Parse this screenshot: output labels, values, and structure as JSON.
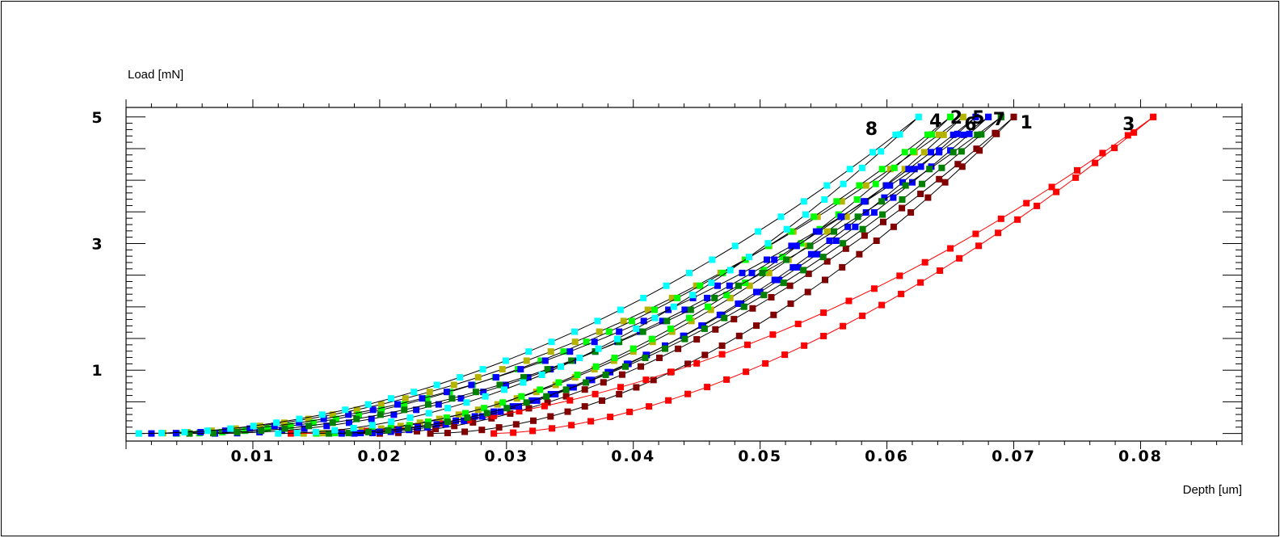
{
  "chart_data": {
    "type": "scatter",
    "title": "",
    "xlabel": "Depth  [um]",
    "ylabel": "Load  [mN]",
    "xlim": [
      0,
      0.088
    ],
    "ylim": [
      -0.12,
      5.15
    ],
    "xticks": [
      0.01,
      0.02,
      0.03,
      0.04,
      0.05,
      0.06,
      0.07,
      0.08
    ],
    "xtick_labels": [
      "0.01",
      "0.02",
      "0.03",
      "0.04",
      "0.05",
      "0.06",
      "0.07",
      "0.08"
    ],
    "yticks": [
      1,
      3,
      5
    ],
    "ytick_labels": [
      "1",
      "3",
      "5"
    ],
    "grid": false,
    "legend": "curve numbers at top of each curve",
    "series": [
      {
        "label": "1",
        "color": "#800000",
        "line_color": "#000000",
        "loading": {
          "x_start": 0.02,
          "x_end": 0.07,
          "exponent": 1.75
        },
        "unloading": {
          "x_start": 0.024,
          "x_end": 0.07,
          "exponent": 1.85
        }
      },
      {
        "label": "2",
        "color": "#b4b400",
        "line_color": "#000000",
        "loading": {
          "x_start": 0.001,
          "x_end": 0.066,
          "exponent": 1.95
        },
        "unloading": {
          "x_start": 0.014,
          "x_end": 0.066,
          "exponent": 1.95
        }
      },
      {
        "label": "3",
        "color": "#ff0000",
        "line_color": "#ff0000",
        "loading": {
          "x_start": 0.013,
          "x_end": 0.081,
          "exponent": 2.0
        },
        "unloading": {
          "x_start": 0.029,
          "x_end": 0.081,
          "exponent": 1.7
        }
      },
      {
        "label": "4",
        "color": "#00ff00",
        "line_color": "#000000",
        "loading": {
          "x_start": 0.004,
          "x_end": 0.065,
          "exponent": 1.95
        },
        "unloading": {
          "x_start": 0.015,
          "x_end": 0.065,
          "exponent": 1.9
        }
      },
      {
        "label": "5",
        "color": "#0000ff",
        "line_color": "#000000",
        "loading": {
          "x_start": 0.002,
          "x_end": 0.068,
          "exponent": 1.95
        },
        "unloading": {
          "x_start": 0.017,
          "x_end": 0.068,
          "exponent": 1.85
        }
      },
      {
        "label": "6",
        "color": "#0000ff",
        "line_color": "#000000",
        "loading": {
          "x_start": 0.007,
          "x_end": 0.067,
          "exponent": 1.95
        },
        "unloading": {
          "x_start": 0.018,
          "x_end": 0.067,
          "exponent": 1.85
        }
      },
      {
        "label": "7",
        "color": "#008000",
        "line_color": "#000000",
        "loading": {
          "x_start": 0.005,
          "x_end": 0.069,
          "exponent": 1.95
        },
        "unloading": {
          "x_start": 0.016,
          "x_end": 0.069,
          "exponent": 1.9
        }
      },
      {
        "label": "8",
        "color": "#00ffff",
        "line_color": "#000000",
        "loading": {
          "x_start": 0.001,
          "x_end": 0.0625,
          "exponent": 1.95
        },
        "unloading": {
          "x_start": 0.012,
          "x_end": 0.0625,
          "exponent": 1.9
        }
      }
    ],
    "max_load": 5.0,
    "points_per_branch": 34
  }
}
